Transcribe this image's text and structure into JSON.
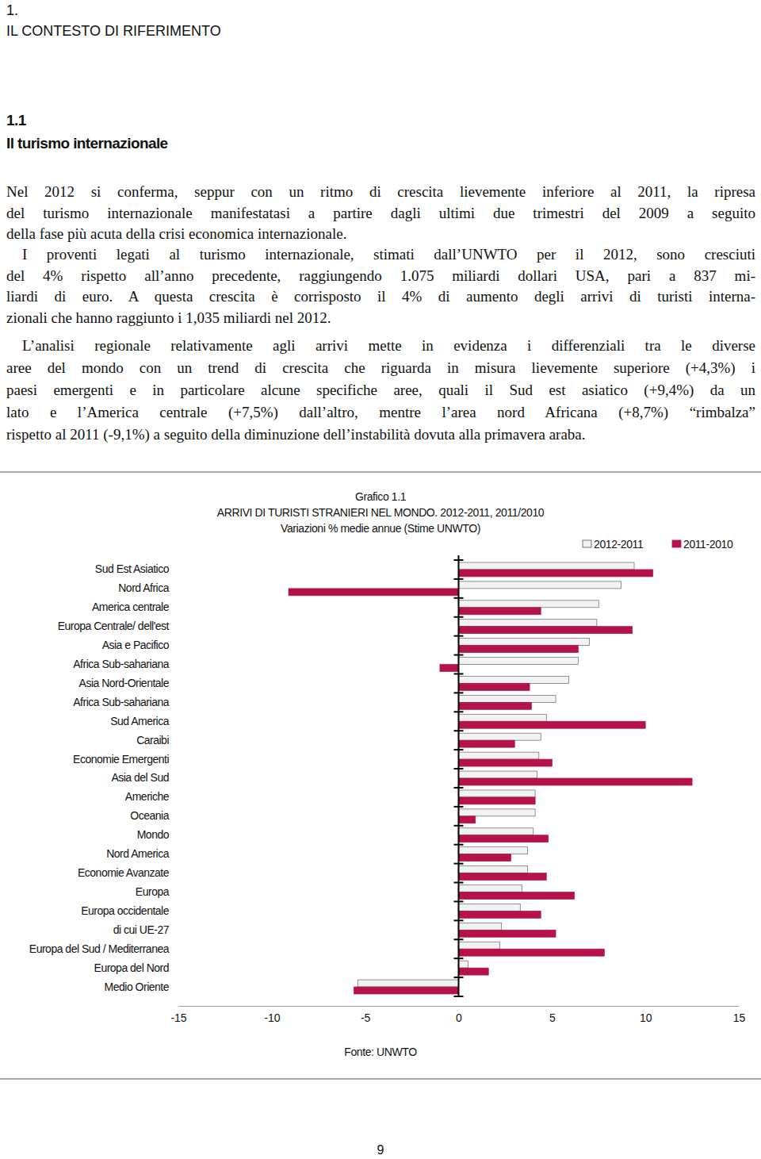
{
  "header": {
    "chapter_number": "1.",
    "chapter_title": "IL CONTESTO DI RIFERIMENTO",
    "section_number": "1.1",
    "section_title": "Il turismo internazionale"
  },
  "paragraphs": [
    [
      "Nel 2012 si conferma, seppur con un ritmo di crescita lievemente inferiore al 2011, la ripresa",
      "del turismo internazionale manifestatasi a partire dagli ultimi due trimestri del 2009 a seguito",
      "della fase più acuta della crisi economica internazionale."
    ],
    [
      "I proventi legati al turismo internazionale, stimati dall’UNWTO per il 2012, sono cresciuti",
      "del 4% rispetto all’anno precedente, raggiungendo 1.075 miliardi dollari USA, pari a 837 mi-",
      "liardi di euro. A questa crescita è corrisposto il 4% di aumento degli arrivi di turisti interna-",
      "zionali che hanno raggiunto i 1,035 miliardi nel 2012."
    ],
    [
      "L’analisi regionale relativamente agli arrivi mette in evidenza i differenziali tra le diverse",
      "aree del mondo con un trend di crescita che riguarda in misura lievemente superiore (+4,3%) i",
      "paesi emergenti e in particolare alcune specifiche aree, quali il Sud est asiatico (+9,4%) da un",
      "lato e l’America centrale (+7,5%) dall’altro, mentre l’area nord Africana (+8,7%) “rimbalza”",
      "rispetto al 2011 (-9,1%) a seguito della diminuzione dell’instabilità dovuta alla primavera araba."
    ]
  ],
  "chart_data": {
    "type": "bar",
    "orientation": "horizontal",
    "label": "Grafico 1.1",
    "title": "ARRIVI DI TURISTI STRANIERI NEL MONDO. 2012-2011, 2011/2010",
    "subtitle": "Variazioni % medie annue (Stime UNWTO)",
    "source": "Fonte: UNWTO",
    "categories": [
      "Sud Est Asiatico",
      "Nord Africa",
      "America centrale",
      "Europa Centrale/ dell'est",
      "Asia e Pacifico",
      "Africa Sub-sahariana",
      "Asia Nord-Orientale",
      "Africa Sub-sahariana",
      "Sud America",
      "Caraibi",
      "Economie Emergenti",
      "Asia del Sud",
      "Americhe",
      "Oceania",
      "Mondo",
      "Nord America",
      "Economie Avanzate",
      "Europa",
      "Europa occidentale",
      "di cui UE-27",
      "Europa del Sud / Mediterranea",
      "Europa del Nord",
      "Medio Oriente"
    ],
    "series": [
      {
        "name": "2012-2011",
        "color": "#f2f2f2",
        "values": [
          9.4,
          8.7,
          7.5,
          7.4,
          7.0,
          6.4,
          5.9,
          5.2,
          4.7,
          4.4,
          4.3,
          4.2,
          4.1,
          4.1,
          4.0,
          3.7,
          3.7,
          3.4,
          3.3,
          2.3,
          2.2,
          0.5,
          -5.4
        ]
      },
      {
        "name": "2011-2010",
        "color": "#b5124b",
        "values": [
          10.4,
          -9.1,
          4.4,
          9.3,
          6.4,
          -1.0,
          3.8,
          3.9,
          10.0,
          3.0,
          5.0,
          12.5,
          4.1,
          0.9,
          4.8,
          2.8,
          4.7,
          6.2,
          4.4,
          5.2,
          7.8,
          1.6,
          -5.6
        ]
      }
    ],
    "xlim": [
      -15,
      15
    ],
    "xticks": [
      -15,
      -10,
      -5,
      0,
      5,
      10,
      15
    ],
    "legend": "top-right"
  },
  "page_number": "9"
}
